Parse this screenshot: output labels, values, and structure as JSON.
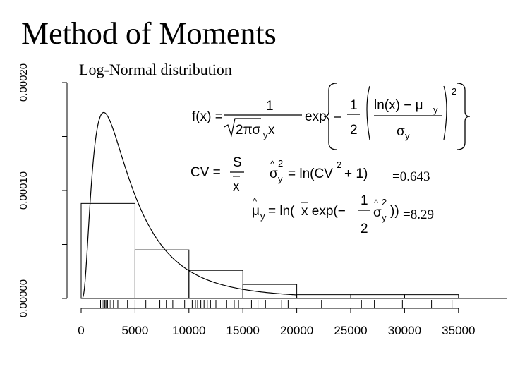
{
  "chart_data": {
    "type": "histogram",
    "title": "Method of Moments",
    "subtitle": "Log-Normal distribution",
    "xlabel": "",
    "ylabel": "",
    "xlim": [
      0,
      35000
    ],
    "ylim": [
      0,
      0.0002
    ],
    "x_ticks": [
      0,
      5000,
      10000,
      15000,
      20000,
      25000,
      30000,
      35000
    ],
    "x_tick_labels": [
      "0",
      "5000",
      "10000",
      "15000",
      "20000",
      "25000",
      "30000",
      "35000"
    ],
    "y_ticks": [
      0,
      0.0001,
      0.0002
    ],
    "y_tick_labels": [
      "0.00000",
      "0.00010",
      "0.00020"
    ],
    "bins": [
      {
        "x0": 0,
        "x1": 5000,
        "density": 8.8e-05
      },
      {
        "x0": 5000,
        "x1": 10000,
        "density": 4.5e-05
      },
      {
        "x0": 10000,
        "x1": 15000,
        "density": 2.6e-05
      },
      {
        "x0": 15000,
        "x1": 20000,
        "density": 1.3e-05
      },
      {
        "x0": 20000,
        "x1": 25000,
        "density": 3.5e-06
      },
      {
        "x0": 25000,
        "x1": 30000,
        "density": 3.5e-06
      },
      {
        "x0": 30000,
        "x1": 35000,
        "density": 3.5e-06
      }
    ],
    "fitted_curve": {
      "distribution": "lognormal",
      "mu_y": 8.29,
      "sigma_y_squared": 0.643
    },
    "rug": [
      1800,
      1950,
      2100,
      2200,
      2300,
      2450,
      2600,
      2750,
      3000,
      3400,
      4300,
      5000,
      6000,
      7300,
      7900,
      8500,
      9600,
      10300,
      10600,
      10800,
      11100,
      11400,
      11700,
      12000,
      12500,
      13500,
      14200,
      14600,
      15800,
      16400,
      17100,
      18600,
      19200,
      22300,
      26000,
      27200,
      29800,
      32500,
      34400
    ],
    "annotations": {
      "sigma_value": "=0.643",
      "mu_value": "=8.29"
    }
  }
}
